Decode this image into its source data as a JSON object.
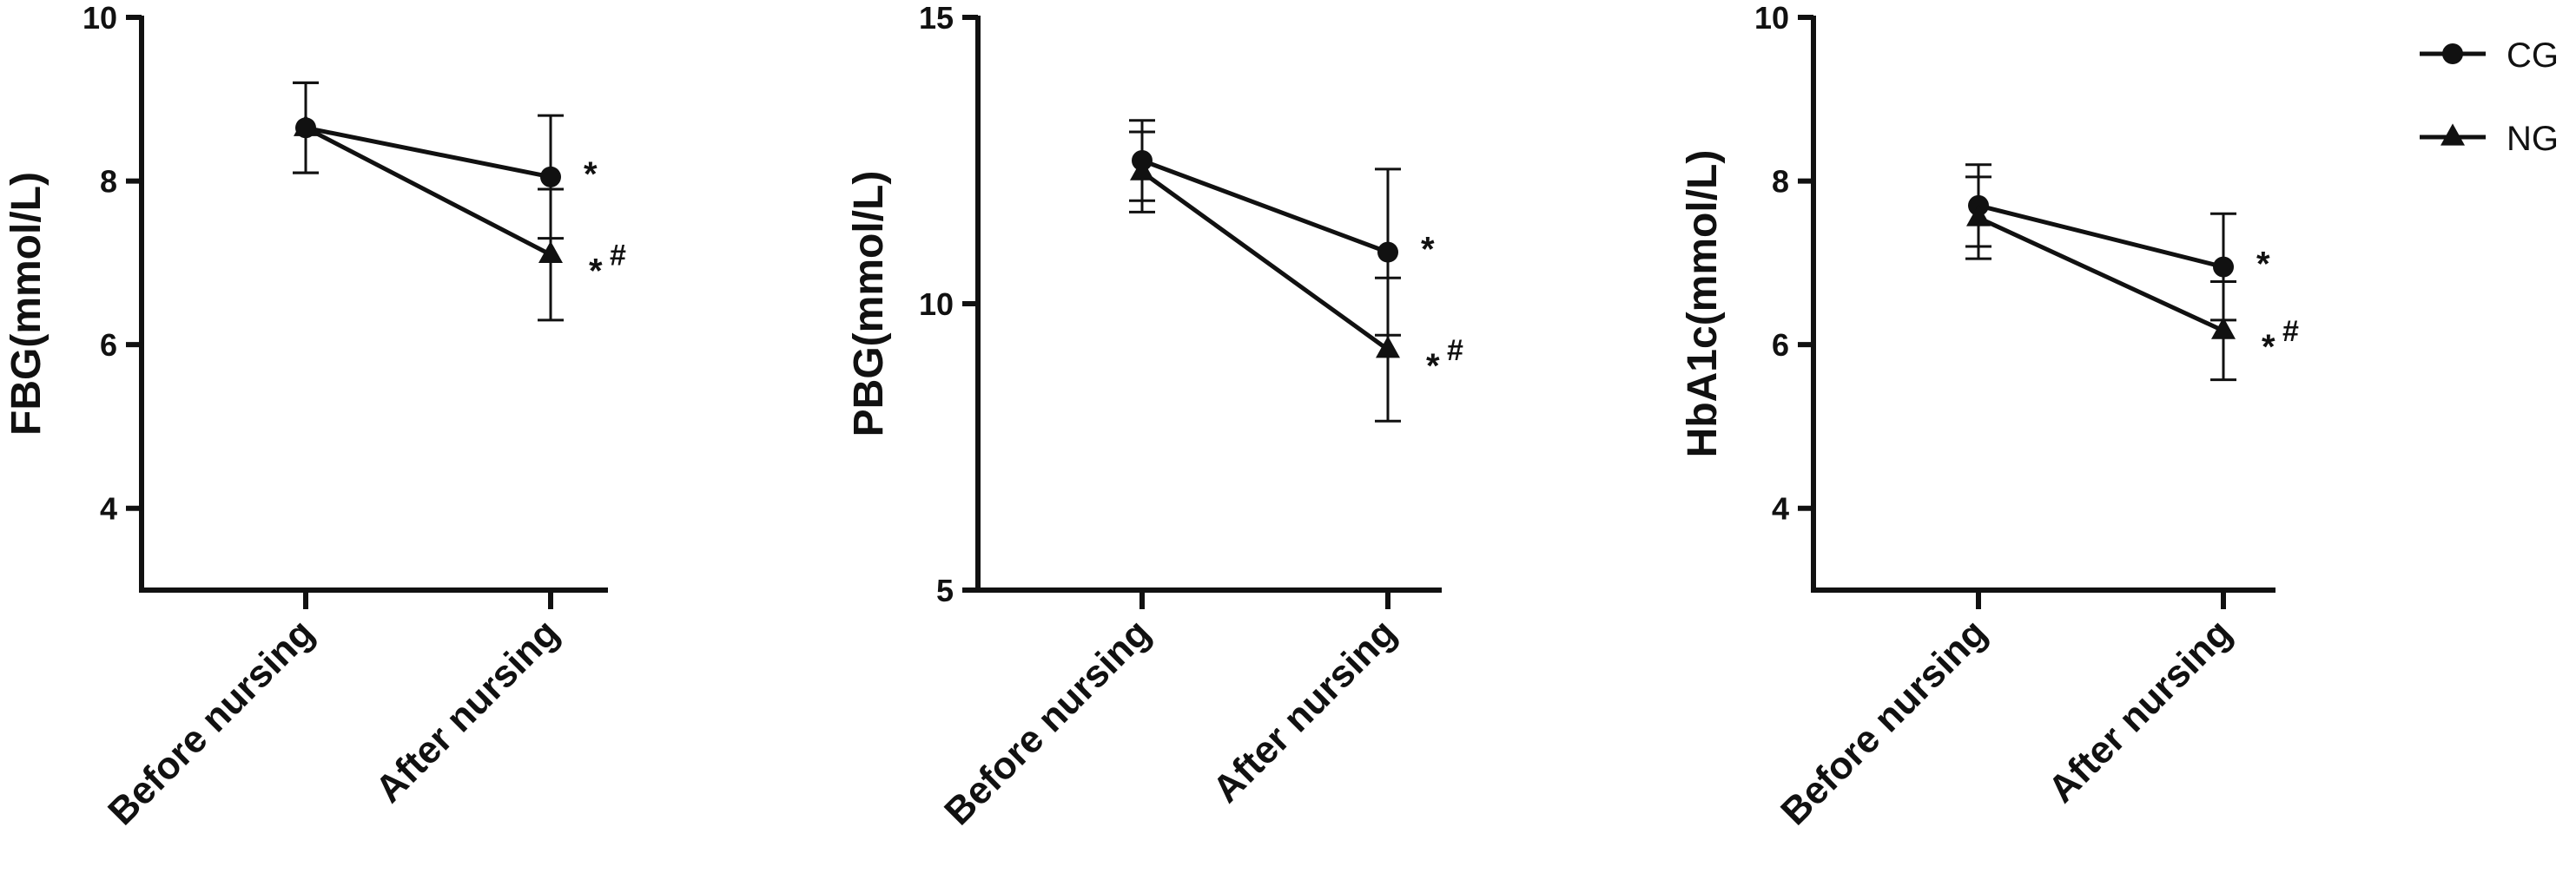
{
  "legend": [
    {
      "name": "CG",
      "marker": "circle"
    },
    {
      "name": "NG",
      "marker": "triangle"
    }
  ],
  "chart_data": [
    {
      "type": "line",
      "ylabel": "FBG(mmol/L)",
      "categories": [
        "Before nursing",
        "After nursing"
      ],
      "ylim": [
        3,
        10
      ],
      "yticks": [
        4,
        6,
        8,
        10
      ],
      "series": [
        {
          "name": "CG",
          "values": [
            8.65,
            8.05
          ],
          "errors": [
            0.55,
            0.75
          ]
        },
        {
          "name": "NG",
          "values": [
            8.65,
            7.1
          ],
          "errors": [
            0.55,
            0.8
          ]
        }
      ],
      "annotations": [
        "*",
        "*#"
      ]
    },
    {
      "type": "line",
      "ylabel": "PBG(mmol/L)",
      "categories": [
        "Before nursing",
        "After nursing"
      ],
      "ylim": [
        5,
        15
      ],
      "yticks": [
        5,
        10,
        15
      ],
      "series": [
        {
          "name": "CG",
          "values": [
            12.5,
            10.9
          ],
          "errors": [
            0.7,
            1.45
          ]
        },
        {
          "name": "NG",
          "values": [
            12.3,
            9.2
          ],
          "errors": [
            0.7,
            1.25
          ]
        }
      ],
      "annotations": [
        "*",
        "*#"
      ]
    },
    {
      "type": "line",
      "ylabel": "HbA1c(mmol/L)",
      "categories": [
        "Before nursing",
        "After nursing"
      ],
      "ylim": [
        3,
        10
      ],
      "yticks": [
        4,
        6,
        8,
        10
      ],
      "series": [
        {
          "name": "CG",
          "values": [
            7.7,
            6.95
          ],
          "errors": [
            0.5,
            0.65
          ]
        },
        {
          "name": "NG",
          "values": [
            7.55,
            6.17
          ],
          "errors": [
            0.5,
            0.6
          ]
        }
      ],
      "annotations": [
        "*",
        "*#"
      ]
    }
  ]
}
